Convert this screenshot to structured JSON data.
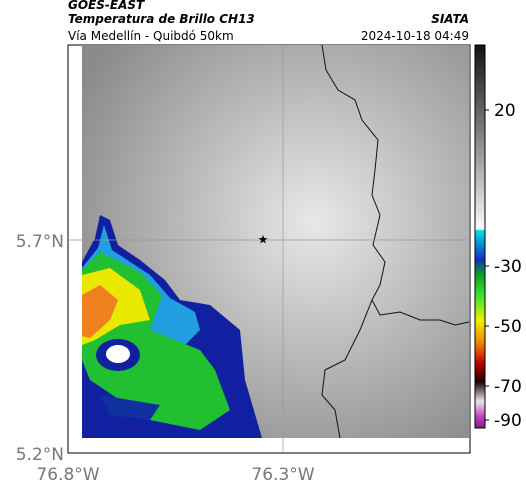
{
  "header": {
    "title": "GOES-EAST",
    "subtitle": "Temperatura de Brillo CH13",
    "route": "Vía Medellín - Quibdó 50km",
    "source": "SIATA",
    "timestamp": "2024-10-18 04:49"
  },
  "axes": {
    "y_labels": [
      "5.7°N",
      "5.2°N"
    ],
    "x_labels": [
      "76.8°W",
      "76.3°W"
    ]
  },
  "colorbar": {
    "ticks": [
      20,
      -30,
      -50,
      -70,
      -90
    ]
  }
}
